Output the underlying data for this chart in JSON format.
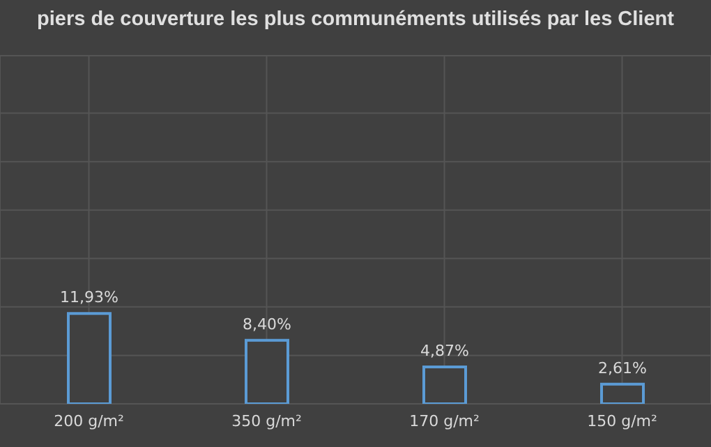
{
  "chart_data": {
    "type": "bar",
    "title": "piers de couverture les plus communéments utilisés par les Client",
    "categories": [
      "200 g/m²",
      "350 g/m²",
      "170 g/m²",
      "150 g/m²"
    ],
    "values": [
      11.93,
      8.4,
      4.87,
      2.61
    ],
    "value_labels": [
      "11,93%",
      "8,40%",
      "4,87%",
      "2,61%"
    ],
    "color": "#5b9bd5",
    "ylim": [
      0,
      46
    ],
    "yticks": [
      {
        "value": 0,
        "label": null
      },
      {
        "value": 6.4,
        "label": null
      },
      {
        "value": 12.8,
        "label": null
      },
      {
        "value": 19.2,
        "label": null
      },
      {
        "value": 25.6,
        "label": null
      },
      {
        "value": 32,
        "label": null
      },
      {
        "value": 38.4,
        "label": null
      }
    ],
    "grid": true,
    "tick_labels": "x"
  }
}
